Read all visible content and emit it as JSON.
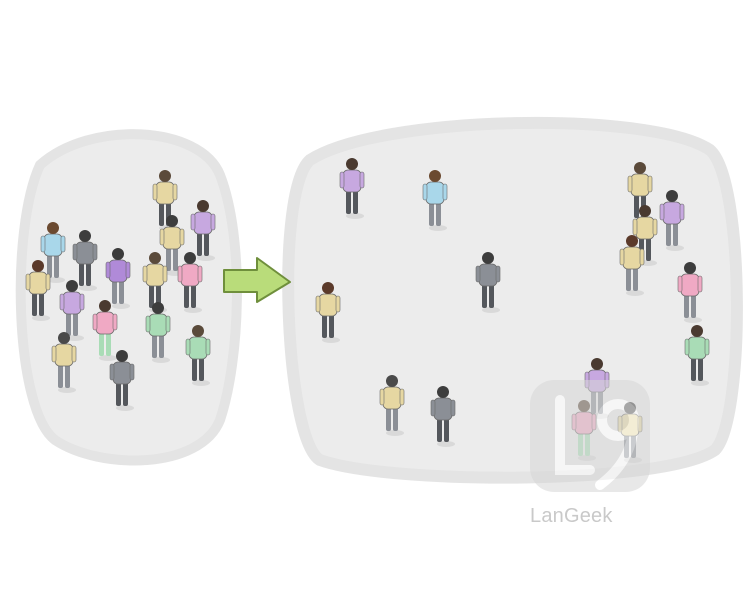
{
  "watermark": {
    "brand": "LanGeek"
  },
  "colors": {
    "background": "#ffffff",
    "area_fill": "#ececec",
    "area_stroke": "#e2e2e2",
    "arrow_fill": "#b9dc7a",
    "arrow_stroke": "#6f8f3c",
    "watermark": "#cfcfcf"
  },
  "icons": [
    "arrow-right-icon",
    "langeek-logo-icon"
  ]
}
